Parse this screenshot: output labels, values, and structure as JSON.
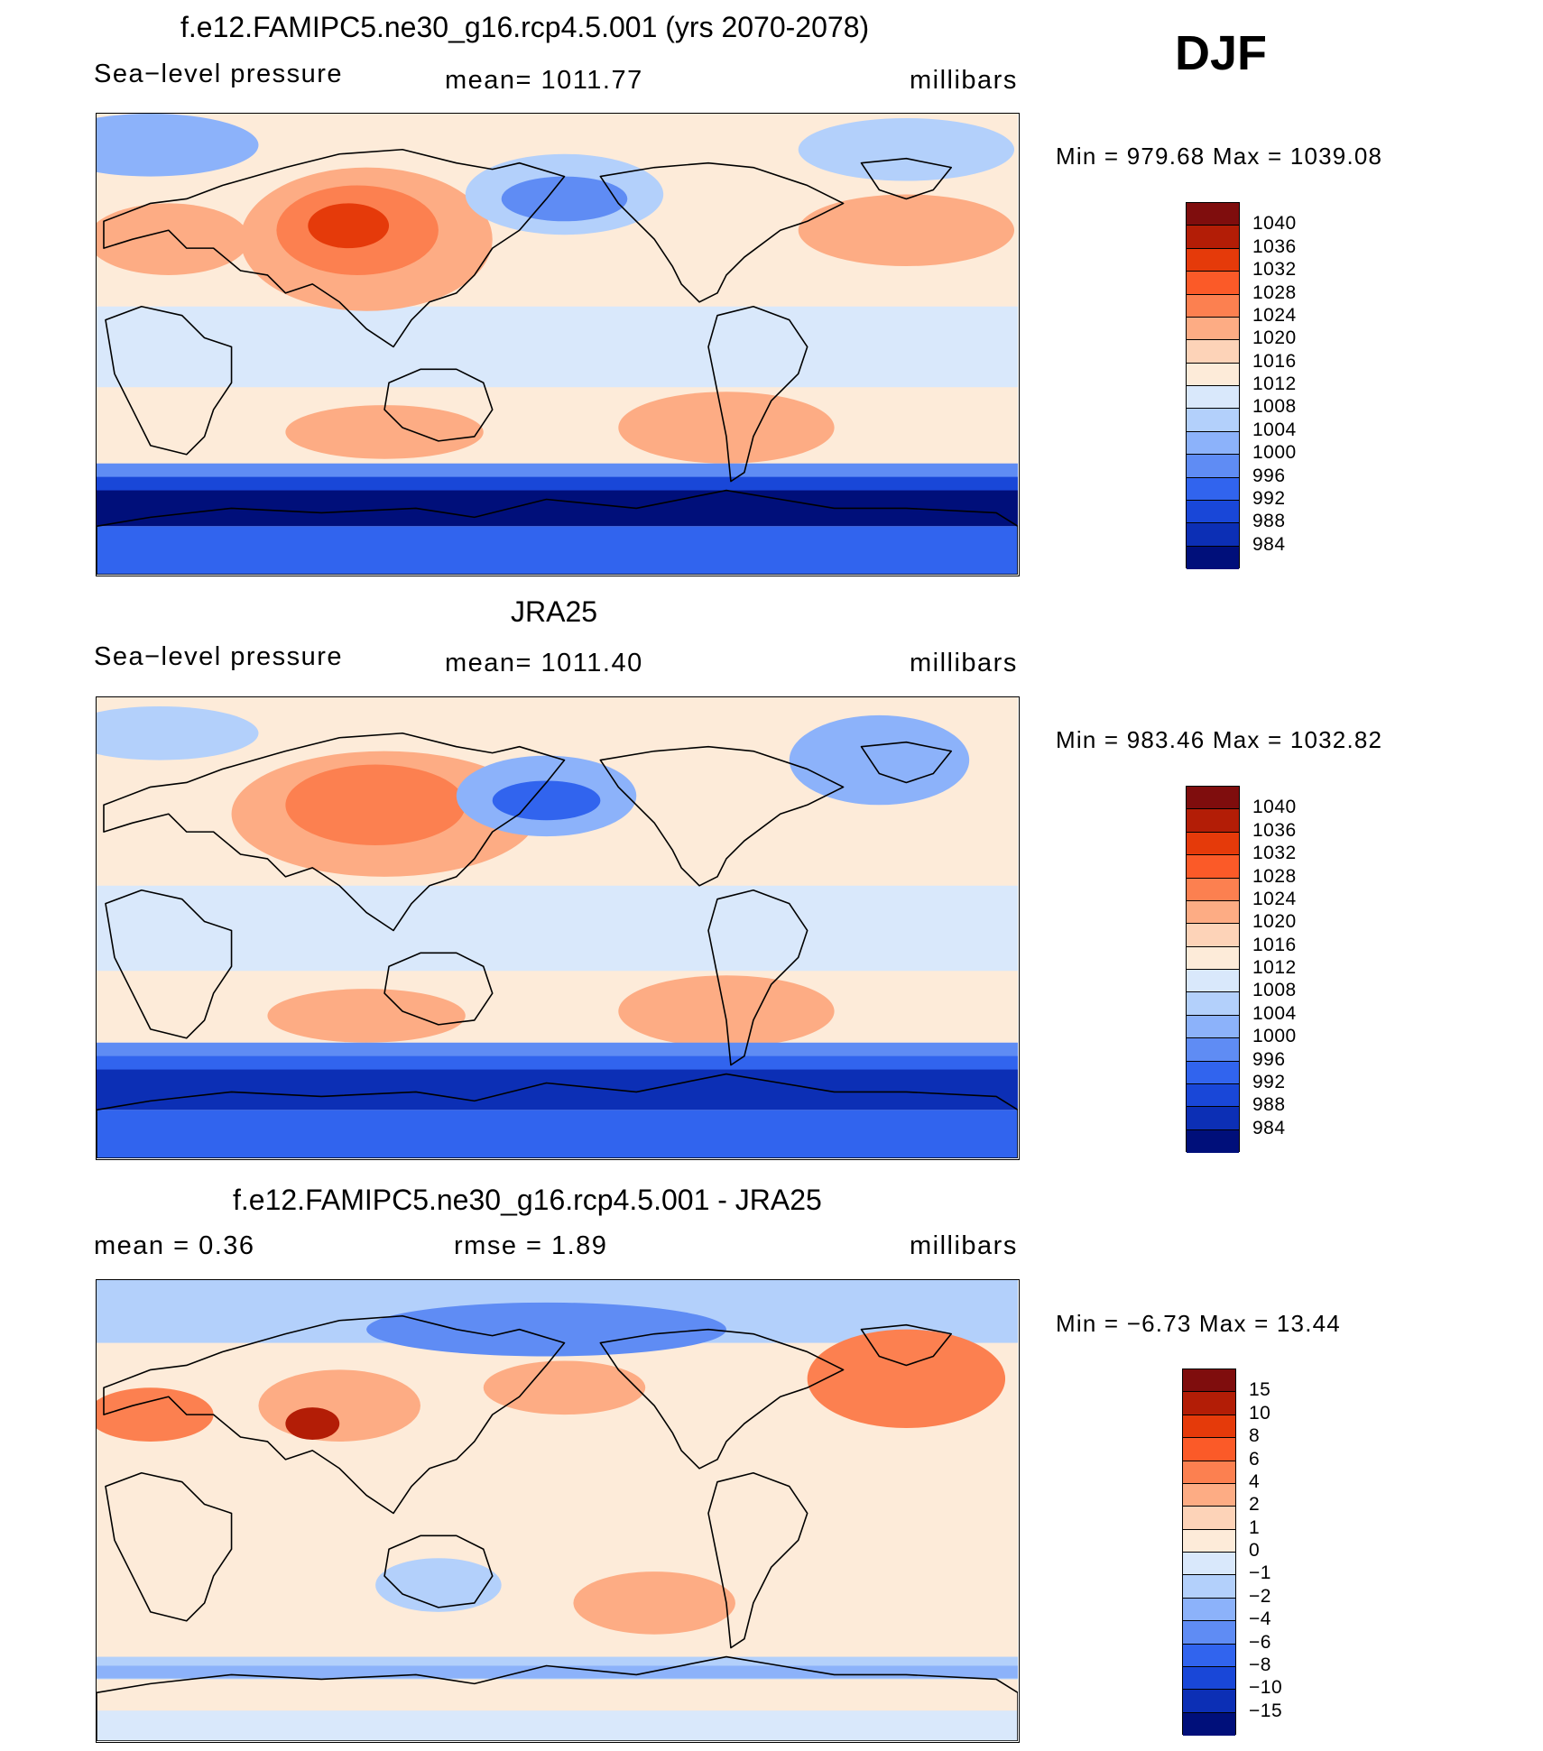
{
  "season": "DJF",
  "panels": [
    {
      "title": "f.e12.FAMIPC5.ne30_g16.rcp4.5.001 (yrs 2070-2078)",
      "left_label": "Sea−level pressure",
      "center_label": "mean=  1011.77",
      "units": "millibars",
      "minmax": "Min  =  979.68  Max  =  1039.08",
      "colorbar": {
        "labels": [
          "1040",
          "1036",
          "1032",
          "1028",
          "1024",
          "1020",
          "1016",
          "1012",
          "1008",
          "1004",
          "1000",
          "996",
          "992",
          "988",
          "984"
        ],
        "colors": [
          "#7f0d0d",
          "#b31d06",
          "#e53a0a",
          "#fb5a28",
          "#fc8050",
          "#fdac84",
          "#fdd3b8",
          "#fdebd9",
          "#d9e8fb",
          "#b3d0fb",
          "#8cb2fa",
          "#5f8cf4",
          "#3164ee",
          "#1947d8",
          "#0c2fb5",
          "#000f7a"
        ]
      },
      "field_type": "model"
    },
    {
      "title": "JRA25",
      "left_label": "Sea−level pressure",
      "center_label": "mean=  1011.40",
      "units": "millibars",
      "minmax": "Min  =  983.46  Max  =  1032.82",
      "colorbar": {
        "labels": [
          "1040",
          "1036",
          "1032",
          "1028",
          "1024",
          "1020",
          "1016",
          "1012",
          "1008",
          "1004",
          "1000",
          "996",
          "992",
          "988",
          "984"
        ],
        "colors": [
          "#7f0d0d",
          "#b31d06",
          "#e53a0a",
          "#fb5a28",
          "#fc8050",
          "#fdac84",
          "#fdd3b8",
          "#fdebd9",
          "#d9e8fb",
          "#b3d0fb",
          "#8cb2fa",
          "#5f8cf4",
          "#3164ee",
          "#1947d8",
          "#0c2fb5",
          "#000f7a"
        ]
      },
      "field_type": "obs"
    },
    {
      "title": "f.e12.FAMIPC5.ne30_g16.rcp4.5.001 - JRA25",
      "left_label": "mean =     0.36",
      "center_label": "rmse =     1.89",
      "units": "millibars",
      "minmax": "Min  =   −6.73  Max  =    13.44",
      "colorbar": {
        "labels": [
          "15",
          "10",
          "8",
          "6",
          "4",
          "2",
          "1",
          "0",
          "−1",
          "−2",
          "−4",
          "−6",
          "−8",
          "−10",
          "−15"
        ],
        "colors": [
          "#7f0d0d",
          "#b31d06",
          "#e53a0a",
          "#fb5a28",
          "#fc8050",
          "#fdac84",
          "#fdd3b8",
          "#fdebd9",
          "#d9e8fb",
          "#b3d0fb",
          "#8cb2fa",
          "#5f8cf4",
          "#3164ee",
          "#1947d8",
          "#0c2fb5",
          "#000f7a"
        ]
      },
      "field_type": "diff"
    }
  ]
}
